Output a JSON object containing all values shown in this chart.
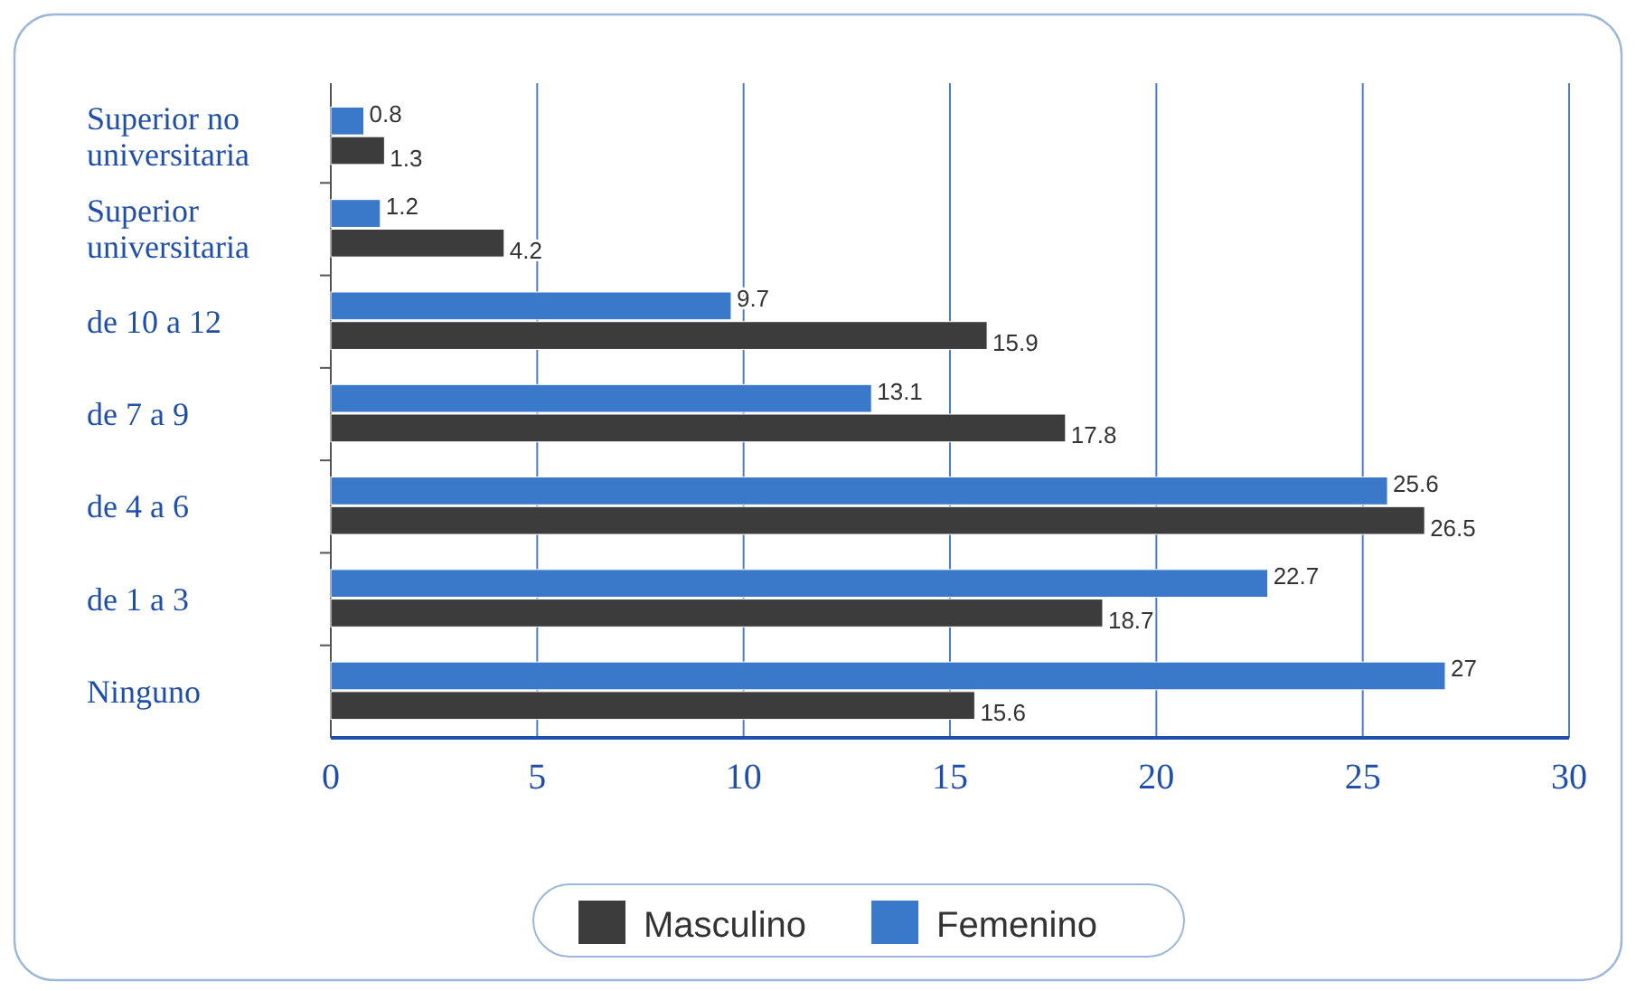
{
  "chart_data": {
    "type": "bar",
    "orientation": "horizontal",
    "categories": [
      "Superior no universitaria",
      "Superior universitaria",
      "de 10 a 12",
      "de 7 a 9",
      "de 4 a 6",
      "de 1 a 3",
      "Ninguno"
    ],
    "series": [
      {
        "name": "Masculino",
        "color": "#3c3c3c",
        "values": [
          1.3,
          4.2,
          15.9,
          17.8,
          26.5,
          18.7,
          15.6
        ]
      },
      {
        "name": "Femenino",
        "color": "#3a78c9",
        "values": [
          0.8,
          1.2,
          9.7,
          13.1,
          25.6,
          22.7,
          27
        ]
      }
    ],
    "xlim": [
      0,
      30
    ],
    "xticks": [
      0,
      5,
      10,
      15,
      20,
      25,
      30
    ],
    "grid": "x",
    "legend": "bottom",
    "data_labels": true
  }
}
